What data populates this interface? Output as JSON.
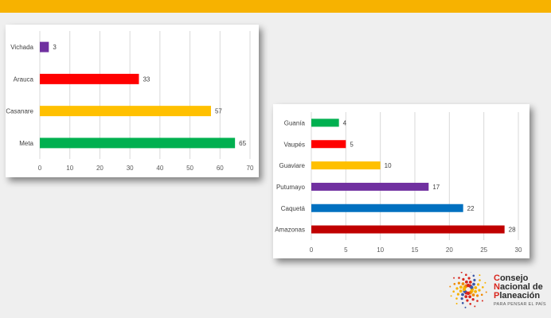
{
  "colors": {
    "top_band": "#f7b200",
    "background": "#efefef"
  },
  "chart_data": [
    {
      "type": "bar",
      "orientation": "horizontal",
      "categories": [
        "Vichada",
        "Arauca",
        "Casanare",
        "Meta"
      ],
      "values": [
        3,
        33,
        57,
        65
      ],
      "colors": [
        "#7030a0",
        "#ff0000",
        "#ffc000",
        "#00b050"
      ],
      "xlim": [
        0,
        70
      ],
      "xticks": [
        0,
        10,
        20,
        30,
        40,
        50,
        60,
        70
      ],
      "grid": true,
      "data_labels": true
    },
    {
      "type": "bar",
      "orientation": "horizontal",
      "categories": [
        "Guanía",
        "Vaupés",
        "Guaviare",
        "Putumayo",
        "Caquetá",
        "Amazonas"
      ],
      "values": [
        4,
        5,
        10,
        17,
        22,
        28
      ],
      "colors": [
        "#00b050",
        "#ff0000",
        "#ffc000",
        "#7030a0",
        "#0070c0",
        "#c00000"
      ],
      "xlim": [
        0,
        30
      ],
      "xticks": [
        0,
        5,
        10,
        15,
        20,
        25,
        30
      ],
      "grid": true,
      "data_labels": true
    }
  ],
  "logo": {
    "line1_first": "C",
    "line1_rest": "onsejo",
    "line2_first": "N",
    "line2_rest": "acional de",
    "line3_first": "P",
    "line3_rest": "laneación",
    "tagline": "PARA PENSAR EL PAÍS",
    "accent_color": "#d8261e"
  }
}
